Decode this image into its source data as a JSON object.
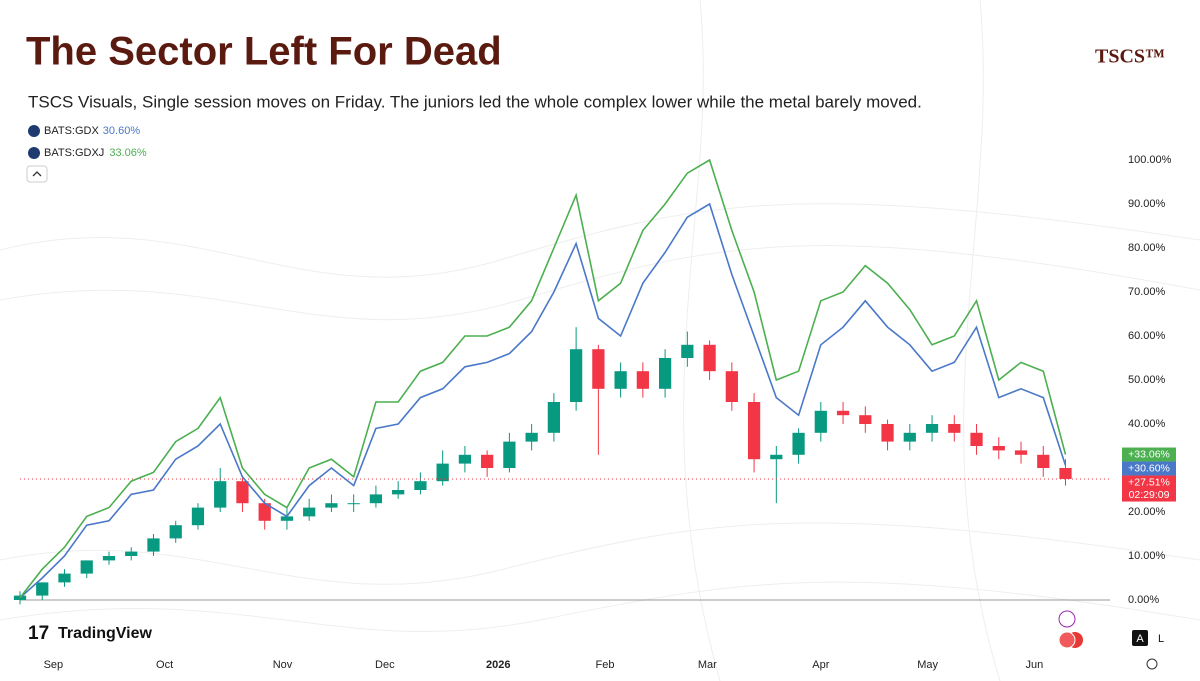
{
  "chart_data": {
    "type": "candlestick",
    "title": "The Sector Left For Dead",
    "brand": "TSCS™",
    "subtitle": "TSCS Visuals, Single session moves on Friday. The juniors led the whole complex lower while the metal barely moved.",
    "watermark": "TradingView",
    "scale_buttons": [
      "A",
      "L"
    ],
    "countdown": "02:29:09",
    "xlim": [
      0,
      49
    ],
    "xticks": [
      {
        "value": 1.5,
        "label": "Sep"
      },
      {
        "value": 6.5,
        "label": "Oct"
      },
      {
        "value": 11.8,
        "label": "Nov"
      },
      {
        "value": 16.4,
        "label": "Dec"
      },
      {
        "value": 21.5,
        "label": "2026"
      },
      {
        "value": 26.3,
        "label": "Feb"
      },
      {
        "value": 30.9,
        "label": "Mar"
      },
      {
        "value": 36.0,
        "label": "Apr"
      },
      {
        "value": 40.8,
        "label": "May"
      },
      {
        "value": 45.6,
        "label": "Jun"
      }
    ],
    "ylim": [
      -4.5,
      110
    ],
    "yticks": [
      {
        "value": 0,
        "label": "0.00%"
      },
      {
        "value": 10,
        "label": "10.00%"
      },
      {
        "value": 20,
        "label": "20.00%"
      },
      {
        "value": 30,
        "label": "30.00%"
      },
      {
        "value": 40,
        "label": "40.00%"
      },
      {
        "value": 50,
        "label": "50.00%"
      },
      {
        "value": 60,
        "label": "60.00%"
      },
      {
        "value": 70,
        "label": "70.00%"
      },
      {
        "value": 80,
        "label": "80.00%"
      },
      {
        "value": 90,
        "label": "90.00%"
      },
      {
        "value": 100,
        "label": "100.00%"
      }
    ],
    "zero_line": true,
    "series": [
      {
        "up_color": "#089981",
        "down_color": "#f23645",
        "price_label": "+27.51%",
        "open": [
          0,
          1,
          4,
          6,
          9,
          10,
          11,
          14,
          17,
          21,
          27,
          22,
          18,
          19,
          21,
          22,
          22,
          24,
          25,
          27,
          31,
          33,
          30,
          36,
          38,
          45,
          57,
          48,
          52,
          48,
          55,
          58,
          52,
          45,
          32,
          33,
          38,
          43,
          42,
          40,
          36,
          38,
          40,
          38,
          35,
          34,
          33,
          30
        ],
        "high": [
          2,
          4,
          7,
          9,
          11,
          12,
          15,
          18,
          22,
          30,
          28,
          23,
          21,
          23,
          24,
          24,
          26,
          27,
          29,
          34,
          35,
          34,
          38,
          40,
          47,
          62,
          58,
          54,
          54,
          57,
          61,
          59,
          54,
          47,
          35,
          39,
          45,
          45,
          44,
          41,
          40,
          42,
          42,
          40,
          37,
          36,
          35,
          32
        ],
        "low": [
          -1,
          0,
          3,
          5,
          8,
          9,
          10,
          13,
          16,
          20,
          20,
          16,
          16,
          18,
          20,
          20,
          21,
          23,
          24,
          26,
          29,
          28,
          29,
          34,
          36,
          43,
          33,
          46,
          46,
          46,
          53,
          50,
          43,
          29,
          22,
          31,
          36,
          40,
          38,
          34,
          34,
          36,
          36,
          33,
          32,
          31,
          28,
          26
        ],
        "close": [
          1,
          4,
          6,
          9,
          10,
          11,
          14,
          17,
          21,
          27,
          22,
          18,
          19,
          21,
          22,
          22,
          24,
          25,
          27,
          31,
          33,
          30,
          36,
          38,
          45,
          57,
          48,
          52,
          48,
          55,
          58,
          52,
          45,
          32,
          33,
          38,
          43,
          42,
          40,
          36,
          38,
          40,
          38,
          35,
          34,
          33,
          30,
          27.51
        ]
      },
      {
        "name": "BATS:GDX",
        "legend_value": "30.60%",
        "price_label": "+30.60%",
        "color": "#4a78c9",
        "values": [
          0.5,
          5,
          10,
          17,
          18,
          24,
          25,
          32,
          35,
          40,
          28,
          22,
          19,
          26,
          30,
          26,
          39,
          40,
          46,
          48,
          53,
          54,
          56,
          61,
          70,
          81,
          64,
          60,
          72,
          79,
          87,
          90,
          74,
          60,
          46,
          42,
          58,
          62,
          68,
          62,
          58,
          52,
          54,
          62,
          46,
          48,
          46,
          30.6
        ]
      },
      {
        "name": "BATS:GDXJ",
        "legend_value": "33.06%",
        "price_label": "+33.06%",
        "color": "#4caf50",
        "values": [
          0.5,
          7,
          12,
          19,
          21,
          27,
          29,
          36,
          39,
          46,
          30,
          24,
          21,
          30,
          32,
          28,
          45,
          45,
          52,
          54,
          60,
          60,
          62,
          68,
          80,
          92,
          68,
          72,
          84,
          90,
          97,
          100,
          84,
          70,
          50,
          52,
          68,
          70,
          76,
          72,
          66,
          58,
          60,
          68,
          50,
          54,
          52,
          33.06
        ]
      }
    ]
  }
}
